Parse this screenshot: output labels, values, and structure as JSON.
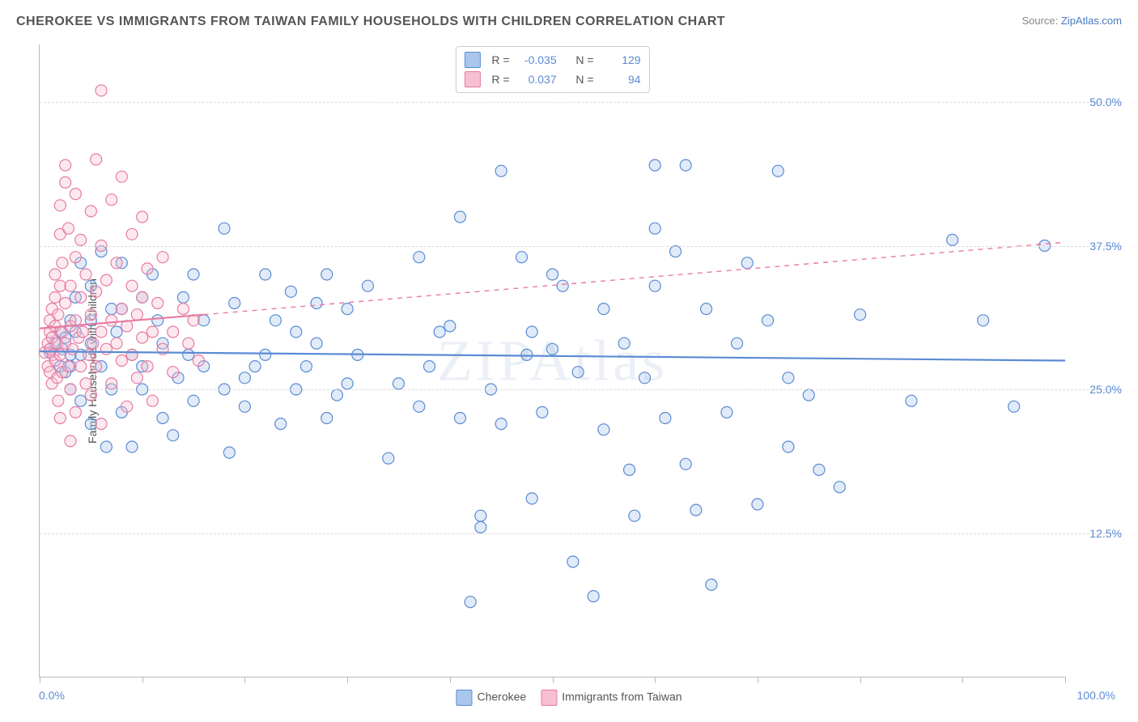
{
  "header": {
    "title": "CHEROKEE VS IMMIGRANTS FROM TAIWAN FAMILY HOUSEHOLDS WITH CHILDREN CORRELATION CHART",
    "source_prefix": "Source: ",
    "source_link": "ZipAtlas.com"
  },
  "watermark": "ZIPAtlas",
  "chart": {
    "type": "scatter",
    "y_axis_title": "Family Households with Children",
    "xlim": [
      0,
      100
    ],
    "ylim": [
      0,
      55
    ],
    "y_ticks": [
      12.5,
      25.0,
      37.5,
      50.0
    ],
    "y_tick_labels": [
      "12.5%",
      "25.0%",
      "37.5%",
      "50.0%"
    ],
    "x_ticks": [
      0,
      10,
      20,
      30,
      40,
      50,
      60,
      70,
      80,
      90,
      100
    ],
    "x_min_label": "0.0%",
    "x_max_label": "100.0%",
    "background_color": "#ffffff",
    "grid_color": "#dddddd",
    "axis_color": "#bbbbbb",
    "marker_radius": 7,
    "marker_stroke_width": 1.2,
    "marker_fill_opacity": 0.35,
    "trendline_width": 2.2,
    "series": [
      {
        "name": "Cherokee",
        "color_fill": "#a9c6ec",
        "color_stroke": "#5b8bd4",
        "trend": {
          "x1": 0,
          "y1": 28.3,
          "x2": 100,
          "y2": 27.5,
          "dash_after_x": 100
        },
        "stats": {
          "R": "-0.035",
          "N": "129"
        },
        "points": [
          [
            1,
            28.2
          ],
          [
            1.5,
            29
          ],
          [
            2,
            27
          ],
          [
            2,
            30
          ],
          [
            2.2,
            28.5
          ],
          [
            2.5,
            26.5
          ],
          [
            2.5,
            29.5
          ],
          [
            3,
            28
          ],
          [
            3,
            27
          ],
          [
            3,
            31
          ],
          [
            3,
            25
          ],
          [
            3.5,
            30
          ],
          [
            3.5,
            33
          ],
          [
            4,
            28
          ],
          [
            4,
            24
          ],
          [
            4,
            36
          ],
          [
            5,
            22
          ],
          [
            5,
            29
          ],
          [
            5,
            34
          ],
          [
            5,
            31
          ],
          [
            6,
            27
          ],
          [
            6,
            37
          ],
          [
            6.5,
            20
          ],
          [
            7,
            25
          ],
          [
            7,
            32
          ],
          [
            7.5,
            30
          ],
          [
            8,
            32
          ],
          [
            8,
            23
          ],
          [
            8,
            36
          ],
          [
            9,
            28
          ],
          [
            9,
            20
          ],
          [
            10,
            27
          ],
          [
            10,
            25
          ],
          [
            10,
            33
          ],
          [
            11,
            35
          ],
          [
            11.5,
            31
          ],
          [
            12,
            22.5
          ],
          [
            12,
            29
          ],
          [
            13,
            21
          ],
          [
            13.5,
            26
          ],
          [
            14,
            33
          ],
          [
            14.5,
            28
          ],
          [
            15,
            35
          ],
          [
            15,
            24
          ],
          [
            16,
            27
          ],
          [
            16,
            31
          ],
          [
            18,
            39
          ],
          [
            18,
            25
          ],
          [
            18.5,
            19.5
          ],
          [
            19,
            32.5
          ],
          [
            20,
            26
          ],
          [
            20,
            23.5
          ],
          [
            21,
            27
          ],
          [
            22,
            35
          ],
          [
            22,
            28
          ],
          [
            23,
            31
          ],
          [
            23.5,
            22
          ],
          [
            24.5,
            33.5
          ],
          [
            25,
            25
          ],
          [
            25,
            30
          ],
          [
            26,
            27
          ],
          [
            27,
            32.5
          ],
          [
            27,
            29
          ],
          [
            28,
            35
          ],
          [
            28,
            22.5
          ],
          [
            29,
            24.5
          ],
          [
            30,
            25.5
          ],
          [
            30,
            32
          ],
          [
            31,
            28
          ],
          [
            32,
            34
          ],
          [
            34,
            19
          ],
          [
            35,
            25.5
          ],
          [
            37,
            23.5
          ],
          [
            37,
            36.5
          ],
          [
            38,
            27
          ],
          [
            39,
            30
          ],
          [
            40,
            30.5
          ],
          [
            41,
            22.5
          ],
          [
            41,
            40
          ],
          [
            42,
            6.5
          ],
          [
            43,
            14
          ],
          [
            43,
            13
          ],
          [
            44,
            25
          ],
          [
            45,
            22
          ],
          [
            45,
            44
          ],
          [
            47,
            36.5
          ],
          [
            47.5,
            28
          ],
          [
            48,
            30
          ],
          [
            48,
            15.5
          ],
          [
            49,
            23
          ],
          [
            50,
            35
          ],
          [
            50,
            28.5
          ],
          [
            51,
            34
          ],
          [
            52,
            10
          ],
          [
            52.5,
            26.5
          ],
          [
            54,
            7
          ],
          [
            55,
            32
          ],
          [
            55,
            21.5
          ],
          [
            57,
            29
          ],
          [
            57.5,
            18
          ],
          [
            58,
            14
          ],
          [
            59,
            26
          ],
          [
            60,
            44.5
          ],
          [
            60,
            34
          ],
          [
            60,
            39
          ],
          [
            61,
            22.5
          ],
          [
            62,
            37
          ],
          [
            63,
            44.5
          ],
          [
            63,
            18.5
          ],
          [
            64,
            14.5
          ],
          [
            65,
            32
          ],
          [
            65.5,
            8
          ],
          [
            67,
            23
          ],
          [
            68,
            29
          ],
          [
            69,
            36
          ],
          [
            70,
            15
          ],
          [
            71,
            31
          ],
          [
            72,
            44
          ],
          [
            73,
            20
          ],
          [
            73,
            26
          ],
          [
            75,
            24.5
          ],
          [
            76,
            18
          ],
          [
            78,
            16.5
          ],
          [
            80,
            31.5
          ],
          [
            85,
            24
          ],
          [
            89,
            38
          ],
          [
            92,
            31
          ],
          [
            95,
            23.5
          ],
          [
            98,
            37.5
          ]
        ]
      },
      {
        "name": "Immigrants from Taiwan",
        "color_fill": "#f7bfd1",
        "color_stroke": "#e77ba3",
        "trend": {
          "x1": 0,
          "y1": 30.3,
          "x2": 100,
          "y2": 37.8,
          "dash_after_x": 16
        },
        "stats": {
          "R": "0.037",
          "N": "94"
        },
        "points": [
          [
            0.5,
            28.2
          ],
          [
            0.8,
            29
          ],
          [
            0.8,
            27
          ],
          [
            1,
            30
          ],
          [
            1,
            28.5
          ],
          [
            1,
            31
          ],
          [
            1,
            26.5
          ],
          [
            1.2,
            29.5
          ],
          [
            1.2,
            32
          ],
          [
            1.2,
            25.5
          ],
          [
            1.3,
            28
          ],
          [
            1.5,
            30.5
          ],
          [
            1.5,
            27.5
          ],
          [
            1.5,
            33
          ],
          [
            1.5,
            35
          ],
          [
            1.7,
            29
          ],
          [
            1.7,
            26
          ],
          [
            1.8,
            31.5
          ],
          [
            1.8,
            24
          ],
          [
            2,
            28
          ],
          [
            2,
            34
          ],
          [
            2,
            38.5
          ],
          [
            2,
            41
          ],
          [
            2,
            22.5
          ],
          [
            2.2,
            30
          ],
          [
            2.2,
            26.5
          ],
          [
            2.2,
            36
          ],
          [
            2.5,
            29
          ],
          [
            2.5,
            32.5
          ],
          [
            2.5,
            43
          ],
          [
            2.5,
            44.5
          ],
          [
            2.8,
            27
          ],
          [
            2.8,
            39
          ],
          [
            3,
            30.5
          ],
          [
            3,
            25
          ],
          [
            3,
            34
          ],
          [
            3,
            20.5
          ],
          [
            3.2,
            28.5
          ],
          [
            3.5,
            31
          ],
          [
            3.5,
            36.5
          ],
          [
            3.5,
            23
          ],
          [
            3.5,
            42
          ],
          [
            3.8,
            29.5
          ],
          [
            4,
            27
          ],
          [
            4,
            33
          ],
          [
            4,
            38
          ],
          [
            4.2,
            30
          ],
          [
            4.5,
            25.5
          ],
          [
            4.5,
            35
          ],
          [
            4.8,
            28
          ],
          [
            5,
            31.5
          ],
          [
            5,
            40.5
          ],
          [
            5,
            24.5
          ],
          [
            5.2,
            29
          ],
          [
            5.5,
            33.5
          ],
          [
            5.5,
            27
          ],
          [
            5.5,
            45
          ],
          [
            6,
            30
          ],
          [
            6,
            22
          ],
          [
            6,
            37.5
          ],
          [
            6,
            51
          ],
          [
            6.5,
            28.5
          ],
          [
            6.5,
            34.5
          ],
          [
            7,
            31
          ],
          [
            7,
            25.5
          ],
          [
            7,
            41.5
          ],
          [
            7.5,
            29
          ],
          [
            7.5,
            36
          ],
          [
            8,
            32
          ],
          [
            8,
            27.5
          ],
          [
            8,
            43.5
          ],
          [
            8.5,
            30.5
          ],
          [
            8.5,
            23.5
          ],
          [
            9,
            34
          ],
          [
            9,
            28
          ],
          [
            9,
            38.5
          ],
          [
            9.5,
            31.5
          ],
          [
            9.5,
            26
          ],
          [
            10,
            29.5
          ],
          [
            10,
            33
          ],
          [
            10,
            40
          ],
          [
            10.5,
            27
          ],
          [
            10.5,
            35.5
          ],
          [
            11,
            30
          ],
          [
            11,
            24
          ],
          [
            11.5,
            32.5
          ],
          [
            12,
            28.5
          ],
          [
            12,
            36.5
          ],
          [
            13,
            30
          ],
          [
            13,
            26.5
          ],
          [
            14,
            32
          ],
          [
            14.5,
            29
          ],
          [
            15,
            31
          ],
          [
            15.5,
            27.5
          ]
        ]
      }
    ]
  },
  "legend_bottom": {
    "items": [
      {
        "label": "Cherokee",
        "fill": "#a9c6ec",
        "stroke": "#5b8bd4"
      },
      {
        "label": "Immigrants from Taiwan",
        "fill": "#f7bfd1",
        "stroke": "#e77ba3"
      }
    ]
  }
}
